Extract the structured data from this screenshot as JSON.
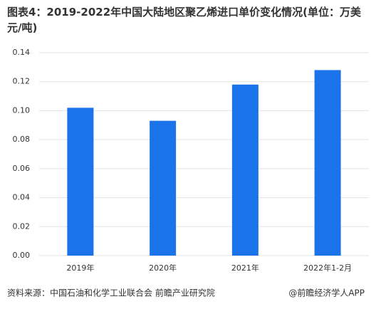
{
  "chart_data": {
    "type": "bar",
    "title": "图表4：2019-2022年中国大陆地区聚乙烯进口单价变化情况(单位：万美元/吨)",
    "categories": [
      "2019年",
      "2020年",
      "2021年",
      "2022年1-2月"
    ],
    "values": [
      0.102,
      0.093,
      0.118,
      0.128
    ],
    "color": "#1a73e8",
    "ylim": [
      0,
      0.14
    ],
    "yticks": [
      {
        "value": 0,
        "label": "0.00"
      },
      {
        "value": 0.02,
        "label": "0.02"
      },
      {
        "value": 0.04,
        "label": "0.04"
      },
      {
        "value": 0.06,
        "label": "0.06"
      },
      {
        "value": 0.08,
        "label": "0.08"
      },
      {
        "value": 0.1,
        "label": "0.10"
      },
      {
        "value": 0.12,
        "label": "0.12"
      },
      {
        "value": 0.14,
        "label": "0.14"
      }
    ],
    "grid": true,
    "source": "资料来源：中国石油和化学工业联合会 前瞻产业研究院",
    "credit": "@前瞻经济学人APP"
  }
}
